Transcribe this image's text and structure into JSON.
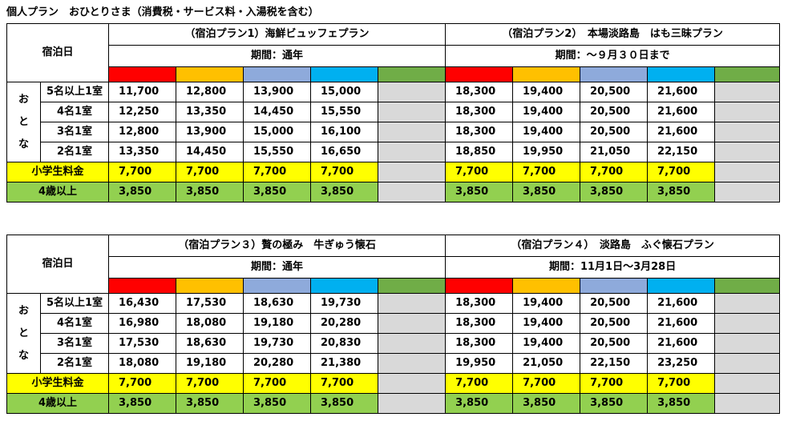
{
  "title": "個人プラン　おひとりさま（消費税・サービス料・入湯税を含む）",
  "labels": {
    "lodging_date": "宿泊日",
    "adult": [
      "お",
      "と",
      "な"
    ],
    "rooms": [
      "5名以上1室",
      "4名1室",
      "3名1室",
      "2名1室"
    ],
    "elementary": "小学生料金",
    "age4": "4歳以上"
  },
  "rate_colors": [
    "#ff0000",
    "#ffc000",
    "#8eaadb",
    "#00b0f0",
    "#70ad47"
  ],
  "tables": [
    {
      "plans": [
        {
          "name": "（宿泊プラン1）海鮮ビュッフェプラン",
          "period": "期間：通年",
          "rows": [
            [
              "11,700",
              "12,800",
              "13,900",
              "15,000"
            ],
            [
              "12,250",
              "13,350",
              "14,450",
              "15,550"
            ],
            [
              "12,800",
              "13,900",
              "15,000",
              "16,100"
            ],
            [
              "13,350",
              "14,450",
              "15,550",
              "16,650"
            ]
          ],
          "elementary": [
            "7,700",
            "7,700",
            "7,700",
            "7,700"
          ],
          "age4": [
            "3,850",
            "3,850",
            "3,850",
            "3,850"
          ]
        },
        {
          "name": "（宿泊プラン2）　本場淡路島　はも三昧プラン",
          "period": "期間：～９月３０日まで",
          "rows": [
            [
              "18,300",
              "19,400",
              "20,500",
              "21,600"
            ],
            [
              "18,300",
              "19,400",
              "20,500",
              "21,600"
            ],
            [
              "18,300",
              "19,400",
              "20,500",
              "21,600"
            ],
            [
              "18,850",
              "19,950",
              "21,050",
              "22,150"
            ]
          ],
          "elementary": [
            "7,700",
            "7,700",
            "7,700",
            "7,700"
          ],
          "age4": [
            "3,850",
            "3,850",
            "3,850",
            "3,850"
          ]
        }
      ]
    },
    {
      "plans": [
        {
          "name": "（宿泊プラン３）贅の極み　牛ぎゅう懐石",
          "period": "期間：通年",
          "rows": [
            [
              "16,430",
              "17,530",
              "18,630",
              "19,730"
            ],
            [
              "16,980",
              "18,080",
              "19,180",
              "20,280"
            ],
            [
              "17,530",
              "18,630",
              "19,730",
              "20,830"
            ],
            [
              "18,080",
              "19,180",
              "20,280",
              "21,380"
            ]
          ],
          "elementary": [
            "7,700",
            "7,700",
            "7,700",
            "7,700"
          ],
          "age4": [
            "3,850",
            "3,850",
            "3,850",
            "3,850"
          ]
        },
        {
          "name": "（宿泊プラン４）　淡路島　ふぐ懐石プラン",
          "period": "期間：11月1日～3月28日",
          "rows": [
            [
              "18,300",
              "19,400",
              "20,500",
              "21,600"
            ],
            [
              "18,300",
              "19,400",
              "20,500",
              "21,600"
            ],
            [
              "18,300",
              "19,400",
              "20,500",
              "21,600"
            ],
            [
              "19,950",
              "21,050",
              "22,150",
              "23,250"
            ]
          ],
          "elementary": [
            "7,700",
            "7,700",
            "7,700",
            "7,700"
          ],
          "age4": [
            "3,850",
            "3,850",
            "3,850",
            "3,850"
          ]
        }
      ]
    }
  ]
}
